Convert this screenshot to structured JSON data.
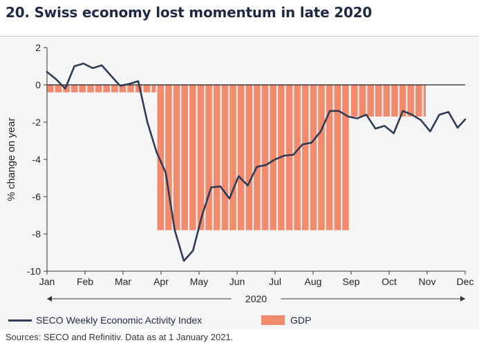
{
  "title": "20. Swiss economy lost momentum in late 2020",
  "source": "Sources: SECO and Refinitiv. Data as at 1 January 2021.",
  "colors": {
    "line": "#2e3b55",
    "bar": "#f28a6e",
    "background": "#f5f5f5"
  },
  "chart_data": {
    "type": "bar+line",
    "ylabel": "% change on year",
    "xlabel": "2020",
    "ylim": [
      -10,
      2
    ],
    "yticks": [
      2,
      0,
      -2,
      -4,
      -6,
      -8,
      -10
    ],
    "xlim": [
      0,
      11
    ],
    "month_labels": [
      "Jan",
      "Feb",
      "Mar",
      "Apr",
      "May",
      "Jun",
      "Jul",
      "Aug",
      "Sep",
      "Oct",
      "Nov",
      "Dec"
    ],
    "legend": [
      "SECO Weekly Economic Activity Index",
      "GDP"
    ],
    "legend_position": "bottom",
    "grid": false,
    "series": [
      {
        "name": "GDP",
        "type": "bar",
        "segments": [
          {
            "x_start": 0.0,
            "x_end": 2.9,
            "value": -0.4
          },
          {
            "x_start": 2.9,
            "x_end": 8.0,
            "value": -7.8
          },
          {
            "x_start": 8.0,
            "x_end": 10.0,
            "value": -1.7
          }
        ]
      },
      {
        "name": "SECO Weekly Economic Activity Index",
        "type": "line",
        "x": [
          0.0,
          0.24,
          0.48,
          0.72,
          0.96,
          1.2,
          1.44,
          1.68,
          1.92,
          2.16,
          2.4,
          2.64,
          2.88,
          3.12,
          3.36,
          3.6,
          3.84,
          4.08,
          4.32,
          4.56,
          4.8,
          5.04,
          5.28,
          5.52,
          5.76,
          6.0,
          6.24,
          6.48,
          6.72,
          6.96,
          7.2,
          7.44,
          7.68,
          7.92,
          8.16,
          8.4,
          8.64,
          8.88,
          9.12,
          9.36,
          9.6,
          9.84,
          10.08,
          10.32,
          10.56,
          10.8,
          11.0
        ],
        "values": [
          0.7,
          0.3,
          -0.2,
          1.0,
          1.15,
          0.9,
          1.05,
          0.5,
          -0.05,
          0.05,
          0.2,
          -2.0,
          -3.6,
          -4.7,
          -7.8,
          -9.45,
          -8.9,
          -7.0,
          -5.5,
          -5.45,
          -6.1,
          -4.9,
          -5.4,
          -4.4,
          -4.3,
          -4.0,
          -3.8,
          -3.75,
          -3.2,
          -3.1,
          -2.5,
          -1.4,
          -1.4,
          -1.7,
          -1.8,
          -1.6,
          -2.35,
          -2.2,
          -2.6,
          -1.4,
          -1.6,
          -1.9,
          -2.5,
          -1.6,
          -1.45,
          -2.3,
          -1.85
        ]
      }
    ]
  }
}
